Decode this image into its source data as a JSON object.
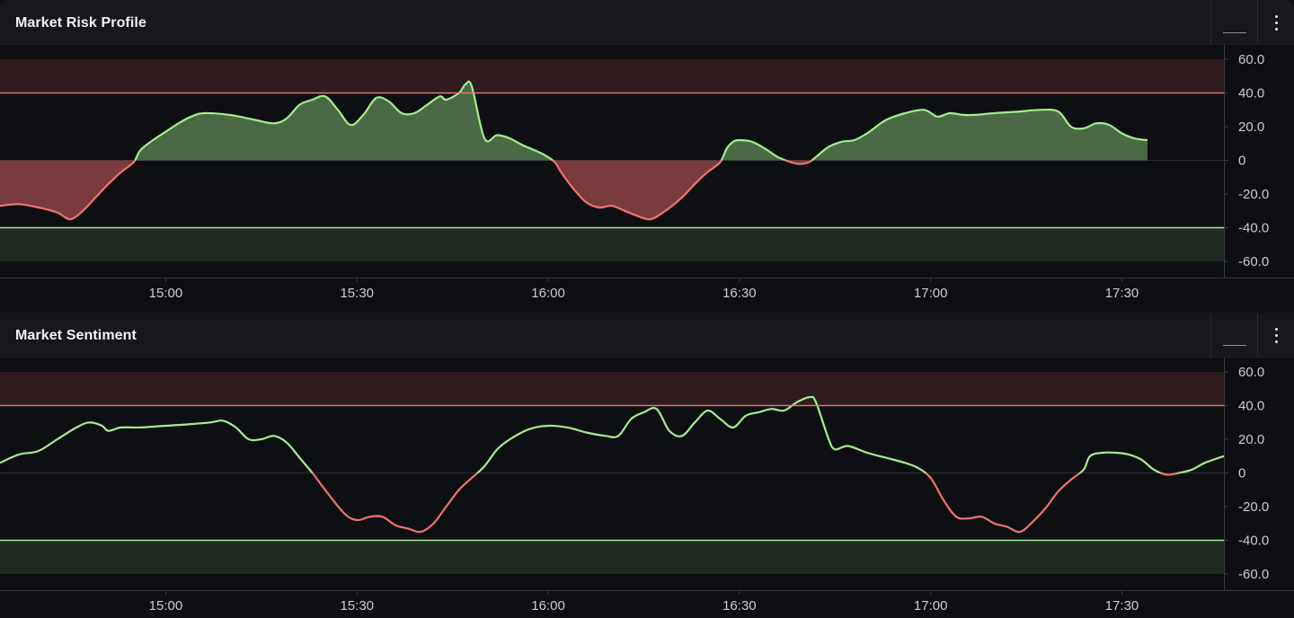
{
  "colors": {
    "positive": "#a2ee8e",
    "negative": "#f0736f",
    "positive_fill": "#4a6a45",
    "negative_fill": "#7a3b3d",
    "upper_band": "#2e1c1f",
    "lower_band": "#1e2a22",
    "upper_line": "#e8736c",
    "lower_line": "#a2ee8e"
  },
  "header_icons": {
    "minimize": "minimize-icon",
    "menu": "more-vertical-icon"
  },
  "chart_data": [
    {
      "type": "area",
      "title": "Market Risk Profile",
      "x_unit": "time (HH:MM)",
      "x_range": [
        "14:34",
        "17:46"
      ],
      "x_tick_labels": [
        "15:00",
        "15:30",
        "16:00",
        "16:30",
        "17:00",
        "17:30"
      ],
      "ylim": [
        -65,
        62
      ],
      "y_tick_labels": [
        "60.0",
        "40.0",
        "20.0",
        "0",
        "-20.0",
        "-40.0",
        "-60.0"
      ],
      "upper_band": [
        40,
        60
      ],
      "lower_band": [
        -60,
        -40
      ],
      "reference_lines": [
        40,
        0,
        -40
      ],
      "series": [
        {
          "x": [
            "14:34",
            "14:37",
            "14:40",
            "14:43",
            "14:45",
            "14:47",
            "14:49",
            "14:51",
            "14:53",
            "14:55",
            "14:56",
            "14:58",
            "15:00",
            "15:02",
            "15:04",
            "15:06",
            "15:10",
            "15:14",
            "15:17",
            "15:19",
            "15:21",
            "15:23",
            "15:25",
            "15:27",
            "15:29",
            "15:31",
            "15:33",
            "15:35",
            "15:37",
            "15:39",
            "15:41",
            "15:43",
            "15:44",
            "15:46",
            "15:47",
            "15:48",
            "15:50",
            "15:52",
            "15:54",
            "15:56",
            "15:59",
            "16:01",
            "16:02",
            "16:04",
            "16:06",
            "16:08",
            "16:10",
            "16:12",
            "16:14",
            "16:16",
            "16:18",
            "16:21",
            "16:23",
            "16:25",
            "16:27",
            "16:28",
            "16:29",
            "16:30",
            "16:32",
            "16:34",
            "16:36",
            "16:38",
            "16:39",
            "16:40",
            "16:41",
            "16:42",
            "16:44",
            "16:46",
            "16:48",
            "16:50",
            "16:53",
            "16:56",
            "16:59",
            "17:01",
            "17:03",
            "17:05",
            "17:07",
            "17:10",
            "17:14",
            "17:17",
            "17:20",
            "17:22",
            "17:24",
            "17:26",
            "17:28",
            "17:30",
            "17:32",
            "17:34"
          ],
          "y": [
            -27,
            -26,
            -28,
            -31,
            -35,
            -30,
            -22,
            -14,
            -7,
            -1,
            6,
            12,
            17,
            22,
            26,
            28,
            27,
            24,
            22,
            25,
            33,
            36,
            38,
            30,
            21,
            27,
            37,
            35,
            28,
            28,
            33,
            38,
            36,
            40,
            45,
            44,
            13,
            15,
            13,
            9,
            4,
            -1,
            -7,
            -17,
            -25,
            -28,
            -27,
            -30,
            -33,
            -35,
            -31,
            -22,
            -14,
            -7,
            -1,
            7,
            11,
            12,
            11,
            7,
            2,
            -1,
            -2,
            -2,
            -1,
            2,
            8,
            11,
            12,
            16,
            24,
            28,
            30,
            26,
            28,
            27,
            27,
            28,
            29,
            30,
            29,
            20,
            19,
            22,
            21,
            16,
            13,
            12
          ]
        }
      ]
    },
    {
      "type": "line",
      "title": "Market Sentiment",
      "x_unit": "time (HH:MM)",
      "x_range": [
        "14:34",
        "17:46"
      ],
      "x_tick_labels": [
        "15:00",
        "15:30",
        "16:00",
        "16:30",
        "17:00",
        "17:30"
      ],
      "ylim": [
        -65,
        62
      ],
      "y_tick_labels": [
        "60.0",
        "40.0",
        "20.0",
        "0",
        "-20.0",
        "-40.0",
        "-60.0"
      ],
      "upper_band": [
        40,
        60
      ],
      "lower_band": [
        -60,
        -40
      ],
      "reference_lines": [
        40,
        0,
        -40
      ],
      "series": [
        {
          "x": [
            "14:34",
            "14:37",
            "14:40",
            "14:43",
            "14:46",
            "14:48",
            "14:50",
            "14:51",
            "14:53",
            "14:56",
            "15:00",
            "15:04",
            "15:07",
            "15:09",
            "15:11",
            "15:13",
            "15:15",
            "15:17",
            "15:19",
            "15:21",
            "15:23",
            "15:25",
            "15:28",
            "15:30",
            "15:32",
            "15:34",
            "15:36",
            "15:38",
            "15:40",
            "15:42",
            "15:44",
            "15:46",
            "15:48",
            "15:50",
            "15:52",
            "15:54",
            "15:57",
            "16:00",
            "16:03",
            "16:06",
            "16:09",
            "16:11",
            "16:13",
            "16:15",
            "16:17",
            "16:19",
            "16:21",
            "16:23",
            "16:25",
            "16:27",
            "16:29",
            "16:31",
            "16:33",
            "16:35",
            "16:37",
            "16:39",
            "16:41",
            "16:42",
            "16:44",
            "16:45",
            "16:47",
            "16:50",
            "16:53",
            "16:56",
            "16:58",
            "17:00",
            "17:02",
            "17:04",
            "17:06",
            "17:08",
            "17:10",
            "17:12",
            "17:14",
            "17:16",
            "17:18",
            "17:20",
            "17:22",
            "17:24",
            "17:25",
            "17:27",
            "17:29",
            "17:31",
            "17:33",
            "17:35",
            "17:37",
            "17:39",
            "17:41",
            "17:43",
            "17:46"
          ],
          "y": [
            6,
            11,
            13,
            20,
            27,
            30,
            28,
            25,
            27,
            27,
            28,
            29,
            30,
            31,
            27,
            20,
            20,
            22,
            18,
            9,
            0,
            -10,
            -24,
            -28,
            -26,
            -26,
            -31,
            -33,
            -35,
            -30,
            -20,
            -10,
            -3,
            4,
            14,
            20,
            26,
            28,
            27,
            24,
            22,
            22,
            32,
            36,
            38,
            25,
            22,
            30,
            37,
            32,
            27,
            34,
            36,
            38,
            37,
            42,
            45,
            42,
            20,
            14,
            16,
            12,
            9,
            6,
            3,
            -3,
            -16,
            -26,
            -27,
            -26,
            -30,
            -32,
            -35,
            -29,
            -21,
            -11,
            -4,
            2,
            10,
            12,
            12,
            11,
            8,
            2,
            -1,
            0,
            2,
            6,
            10
          ]
        }
      ]
    }
  ]
}
